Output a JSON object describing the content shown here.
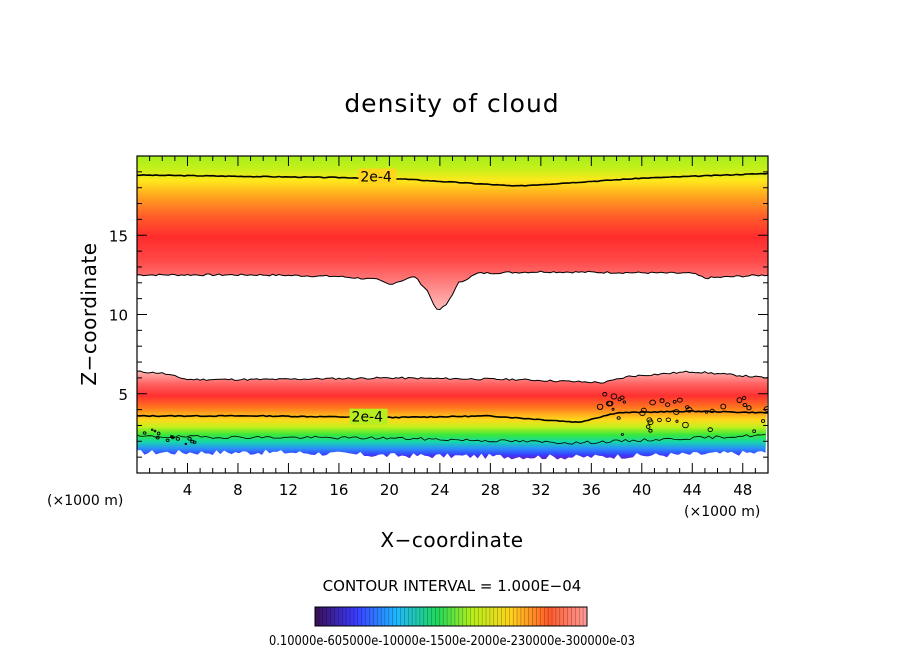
{
  "chart_data": {
    "type": "contour",
    "title": "density of cloud",
    "xlabel": "X−coordinate",
    "ylabel": "Z−coordinate",
    "x_unit_left": "(×1000 m)",
    "x_unit_right": "(×1000 m)",
    "xlim": [
      0,
      50
    ],
    "ylim": [
      0,
      20
    ],
    "xticks": [
      4,
      8,
      12,
      16,
      20,
      24,
      28,
      32,
      36,
      40,
      44,
      48
    ],
    "yticks": [
      5,
      10,
      15
    ],
    "contour_labels": [
      "2e-4",
      "2e-4"
    ],
    "contour_interval_text": "CONTOUR INTERVAL = 1.000E−04",
    "colorbar_label_text": "0.10000e-605000e-10000e-1500e-2000e-230000e-300000e-03",
    "upper_layer": {
      "top_contour_2e4": [
        [
          0,
          18.8
        ],
        [
          20,
          18.6
        ],
        [
          30,
          18.1
        ],
        [
          40,
          18.6
        ],
        [
          50,
          18.9
        ]
      ],
      "core_z": 15.0,
      "bottom_edge": [
        [
          0,
          12.5
        ],
        [
          10,
          12.5
        ],
        [
          16,
          12.4
        ],
        [
          19,
          12.2
        ],
        [
          20,
          11.9
        ],
        [
          22,
          12.4
        ],
        [
          23,
          11.5
        ],
        [
          23.8,
          10.2
        ],
        [
          24.5,
          10.6
        ],
        [
          25.5,
          12.0
        ],
        [
          27,
          12.6
        ],
        [
          32,
          12.7
        ],
        [
          44,
          12.6
        ],
        [
          45,
          12.3
        ],
        [
          50,
          12.5
        ]
      ]
    },
    "lower_layer": {
      "top_edge": [
        [
          0,
          6.4
        ],
        [
          2,
          6.3
        ],
        [
          4,
          5.9
        ],
        [
          10,
          5.9
        ],
        [
          20,
          6.0
        ],
        [
          30,
          5.9
        ],
        [
          37,
          5.7
        ],
        [
          39,
          6.1
        ],
        [
          44,
          6.4
        ],
        [
          47,
          6.2
        ],
        [
          50,
          6.0
        ]
      ],
      "contour_2e4": [
        [
          0,
          3.6
        ],
        [
          10,
          3.6
        ],
        [
          20,
          3.5
        ],
        [
          28,
          3.6
        ],
        [
          35,
          3.2
        ],
        [
          38,
          3.8
        ],
        [
          44,
          3.9
        ],
        [
          50,
          3.8
        ]
      ],
      "bottom_z": 1.3
    }
  }
}
